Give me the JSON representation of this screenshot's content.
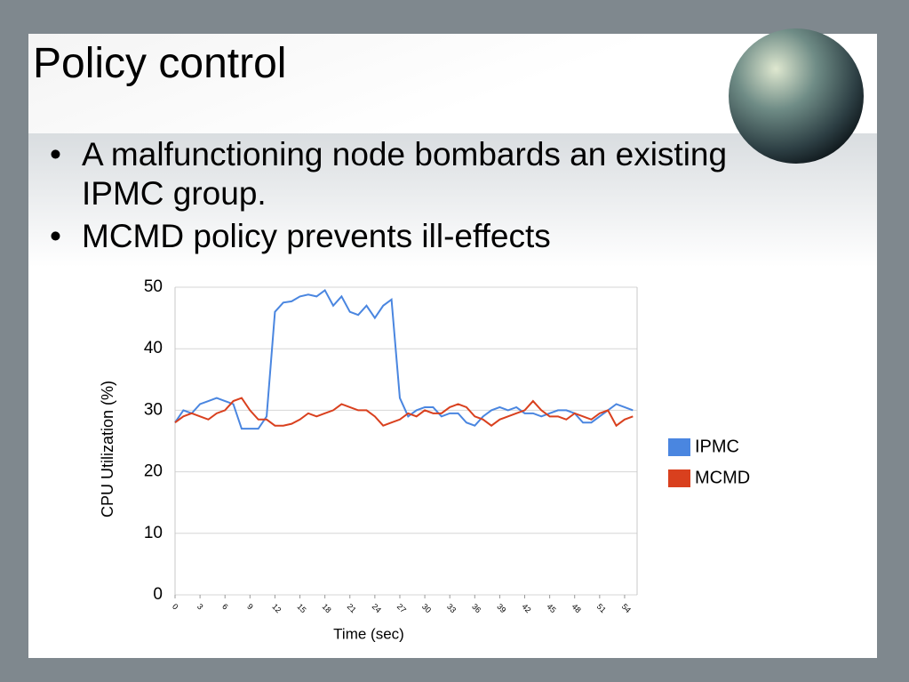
{
  "header": {
    "title": "Policy control"
  },
  "bullets": [
    "A malfunctioning node bombards an existing IPMC group.",
    "MCMD policy prevents ill-effects"
  ],
  "chart_data": {
    "type": "line",
    "xlabel": "Time (sec)",
    "ylabel": "CPU Utilization (%)",
    "x": [
      0,
      1,
      2,
      3,
      4,
      5,
      6,
      7,
      8,
      9,
      10,
      11,
      12,
      13,
      14,
      15,
      16,
      17,
      18,
      19,
      20,
      21,
      22,
      23,
      24,
      25,
      26,
      27,
      28,
      29,
      30,
      31,
      32,
      33,
      34,
      35,
      36,
      37,
      38,
      39,
      40,
      41,
      42,
      43,
      44,
      45,
      46,
      47,
      48,
      49,
      50,
      51,
      52,
      53,
      54,
      55
    ],
    "xlim": [
      0,
      55.5
    ],
    "xticks": [
      0,
      3,
      6,
      9,
      12,
      15,
      18,
      21,
      24,
      27,
      30,
      33,
      36,
      39,
      42,
      45,
      48,
      51,
      54
    ],
    "ylim": [
      0,
      50
    ],
    "yticks": [
      0,
      10,
      20,
      30,
      40,
      50
    ],
    "grid": true,
    "legend": "right",
    "series": [
      {
        "name": "IPMC",
        "color": "#4a86e0",
        "values": [
          28,
          30,
          29.5,
          31,
          31.5,
          32,
          31.5,
          31,
          27,
          27,
          27,
          29,
          46,
          47.5,
          47.7,
          48.5,
          48.8,
          48.5,
          49.5,
          47,
          48.5,
          46,
          45.5,
          47,
          45,
          47,
          48,
          32,
          29,
          30,
          30.5,
          30.5,
          29,
          29.5,
          29.5,
          28,
          27.5,
          29,
          30,
          30.5,
          30,
          30.5,
          29.5,
          29.5,
          29,
          29.5,
          30,
          30,
          29.5,
          28,
          28,
          29,
          30,
          31,
          30.5,
          30
        ]
      },
      {
        "name": "MCMD",
        "color": "#d9401e",
        "values": [
          28,
          29,
          29.5,
          29,
          28.5,
          29.5,
          30,
          31.5,
          32,
          30,
          28.5,
          28.5,
          27.5,
          27.5,
          27.8,
          28.5,
          29.5,
          29,
          29.5,
          30,
          31,
          30.5,
          30,
          30,
          29,
          27.5,
          28,
          28.5,
          29.5,
          29,
          30,
          29.5,
          29.5,
          30.5,
          31,
          30.5,
          29,
          28.5,
          27.5,
          28.5,
          29,
          29.5,
          30,
          31.5,
          30,
          29,
          29,
          28.5,
          29.5,
          29,
          28.5,
          29.5,
          30,
          27.5,
          28.5,
          29
        ]
      }
    ]
  }
}
